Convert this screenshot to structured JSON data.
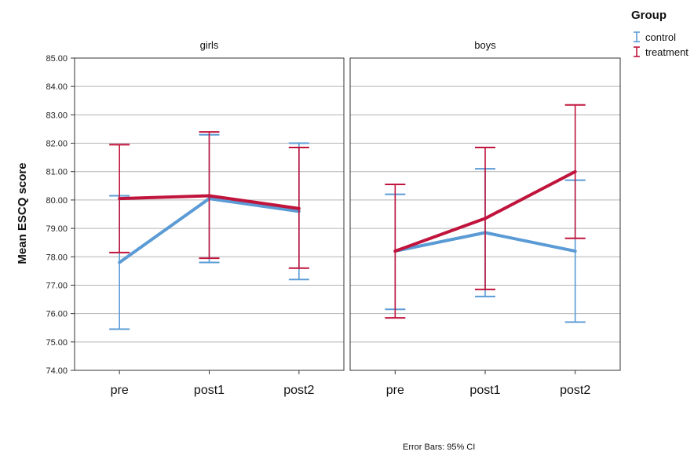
{
  "chart_data": {
    "type": "line",
    "ylabel": "Mean ESCQ score",
    "ylim": [
      74.0,
      85.0
    ],
    "yticks": [
      "74.00",
      "75.00",
      "76.00",
      "77.00",
      "78.00",
      "79.00",
      "80.00",
      "81.00",
      "82.00",
      "83.00",
      "84.00",
      "85.00"
    ],
    "categories": [
      "pre",
      "post1",
      "post2"
    ],
    "legend": {
      "title": "Group",
      "placement": "top-right"
    },
    "grid": "horizontal",
    "footnote": "Error Bars: 95% CI",
    "series_colors": {
      "control": "#5b9bd5",
      "treatment": "#c0143c"
    },
    "panels": [
      {
        "title": "girls",
        "series": [
          {
            "name": "control",
            "values": [
              77.8,
              80.05,
              79.6
            ],
            "ci_low": [
              75.45,
              77.8,
              77.2
            ],
            "ci_high": [
              80.15,
              82.3,
              82.0
            ]
          },
          {
            "name": "treatment",
            "values": [
              80.05,
              80.15,
              79.7
            ],
            "ci_low": [
              78.15,
              77.95,
              77.6
            ],
            "ci_high": [
              81.95,
              82.4,
              81.85
            ]
          }
        ]
      },
      {
        "title": "boys",
        "series": [
          {
            "name": "control",
            "values": [
              78.2,
              78.85,
              78.2
            ],
            "ci_low": [
              76.15,
              76.6,
              75.7
            ],
            "ci_high": [
              80.2,
              81.1,
              80.7
            ]
          },
          {
            "name": "treatment",
            "values": [
              78.2,
              79.35,
              81.0
            ],
            "ci_low": [
              75.85,
              76.85,
              78.65
            ],
            "ci_high": [
              80.55,
              81.85,
              83.35
            ]
          }
        ]
      }
    ]
  }
}
